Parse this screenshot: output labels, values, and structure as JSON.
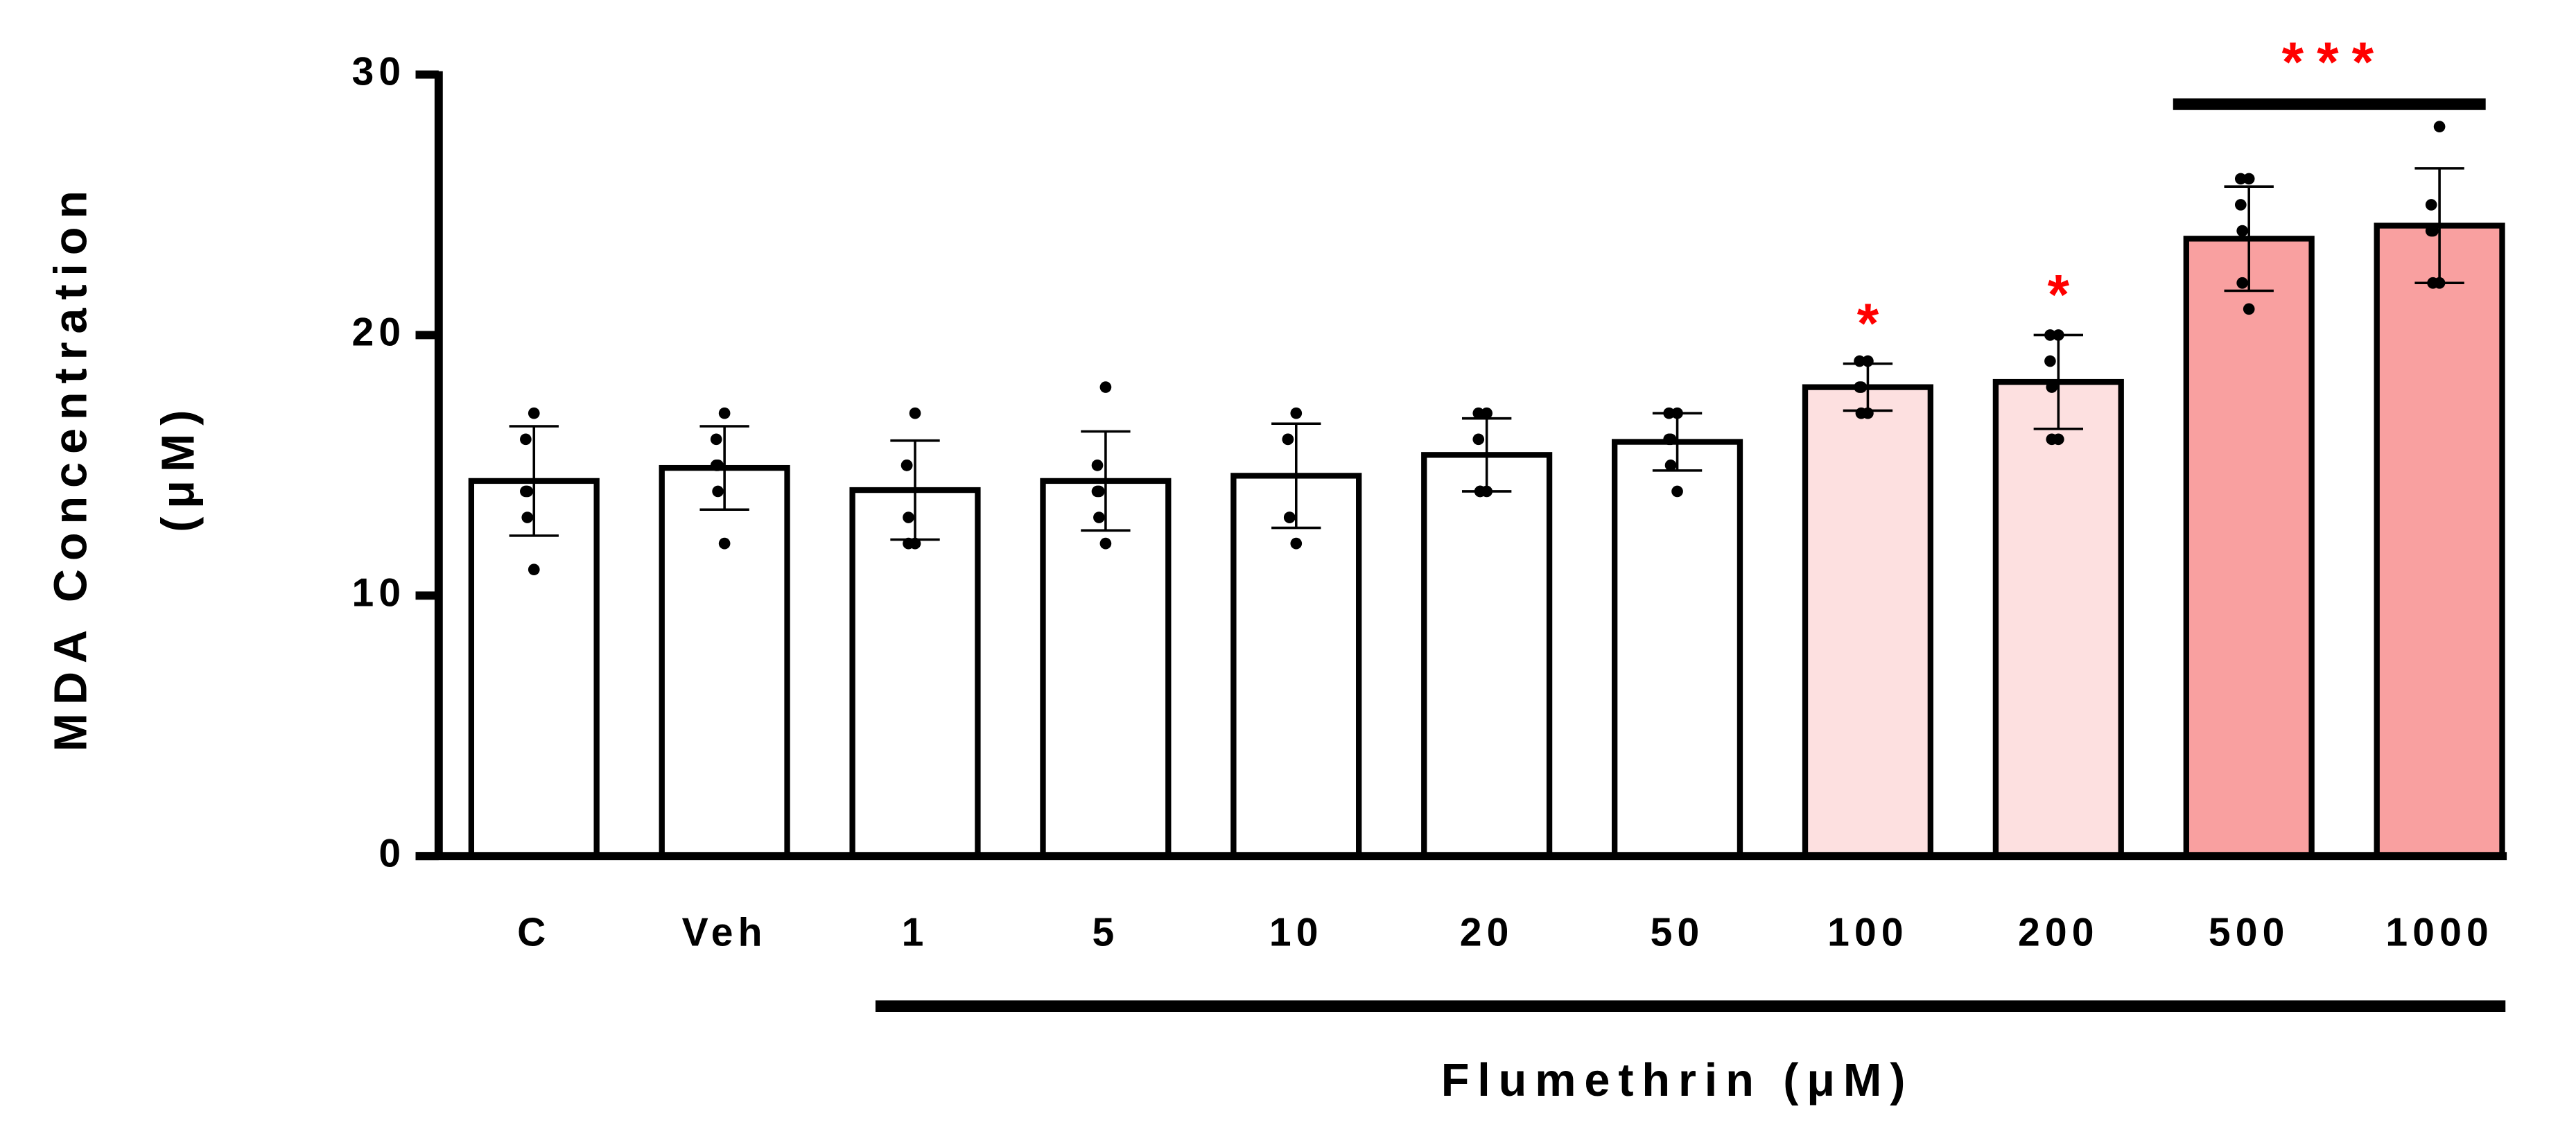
{
  "chart_data": {
    "type": "bar",
    "y_label": [
      "MDA Concentration",
      "(μM)"
    ],
    "categories": [
      "C",
      "Veh",
      "1",
      "5",
      "10",
      "20",
      "50",
      "100",
      "200",
      "500",
      "1000"
    ],
    "values": [
      14.4,
      14.9,
      14.05,
      14.4,
      14.6,
      15.4,
      15.9,
      18.0,
      18.2,
      23.7,
      24.2
    ],
    "errors": [
      2.1,
      1.6,
      1.9,
      1.9,
      2.0,
      1.4,
      1.1,
      0.9,
      1.8,
      2.0,
      2.2
    ],
    "points": [
      [
        17,
        16,
        14,
        14,
        13,
        11
      ],
      [
        17,
        16,
        15,
        15,
        14,
        12
      ],
      [
        17,
        15,
        15,
        13,
        12,
        12
      ],
      [
        18,
        15,
        14,
        14,
        13,
        12
      ],
      [
        17,
        16,
        16,
        13,
        13,
        12
      ],
      [
        17,
        17,
        16,
        14,
        14,
        14
      ],
      [
        17,
        17,
        16,
        16,
        15,
        14
      ],
      [
        19,
        19,
        18,
        18,
        17,
        17
      ],
      [
        20,
        20,
        19,
        18,
        16,
        16
      ],
      [
        26,
        26,
        25,
        24,
        22,
        21
      ],
      [
        28,
        25,
        24,
        24,
        22,
        22
      ]
    ],
    "colors": [
      "#ffffff",
      "#ffffff",
      "#ffffff",
      "#ffffff",
      "#ffffff",
      "#ffffff",
      "#ffffff",
      "#fde0e0",
      "#fde0e0",
      "#f9a0a0",
      "#f9a0a0"
    ],
    "ylim": [
      0,
      30
    ],
    "yticks": [
      0,
      10,
      20,
      30
    ],
    "significance": [
      {
        "label": "*",
        "from": "100",
        "to": "100"
      },
      {
        "label": "*",
        "from": "200",
        "to": "200"
      },
      {
        "label": "***",
        "from": "500",
        "to": "1000"
      }
    ],
    "x_group": {
      "label": "Flumethrin (μM)",
      "from": "1",
      "to": "1000"
    }
  }
}
